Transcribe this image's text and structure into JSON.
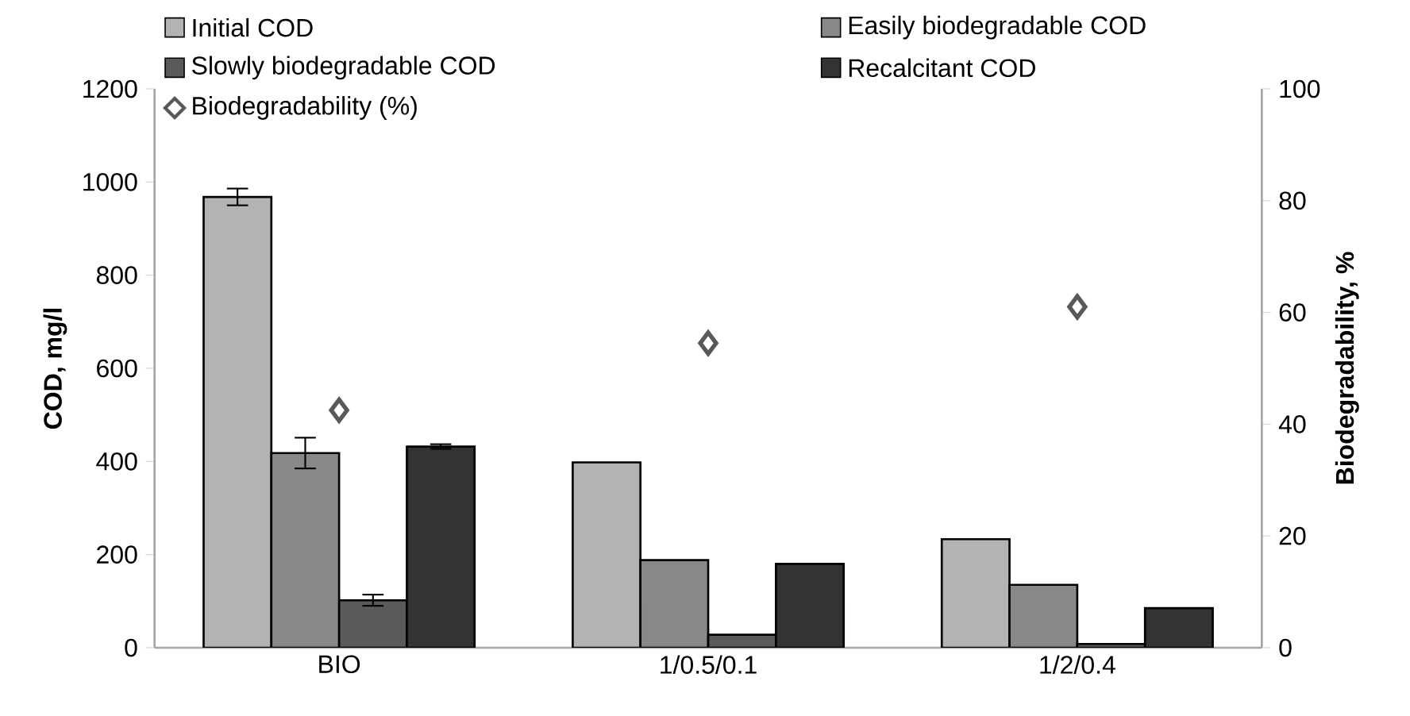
{
  "chart_data": {
    "type": "bar",
    "ylabel": "COD, mg/l",
    "y2label": "Biodegradability, %",
    "categories": [
      "BIO",
      "1/0.5/0.1",
      "1/2/0.4"
    ],
    "series": [
      {
        "name": "Initial COD",
        "color": "#b3b3b3",
        "values": [
          968,
          398,
          233
        ],
        "errors": [
          18,
          null,
          null
        ]
      },
      {
        "name": "Easily biodegradable COD",
        "color": "#888888",
        "values": [
          418,
          188,
          135
        ],
        "errors": [
          33,
          null,
          null
        ]
      },
      {
        "name": "Slowly biodegradable COD",
        "color": "#5a5a5a",
        "values": [
          102,
          28,
          8
        ],
        "errors": [
          12,
          null,
          null
        ]
      },
      {
        "name": "Recalcitant COD",
        "color": "#333333",
        "values": [
          432,
          180,
          85
        ],
        "errors": [
          5,
          null,
          null
        ]
      },
      {
        "name": "Biodegradability (%)",
        "type": "scatter",
        "axis": "y2",
        "marker": "diamond",
        "color": "#595959",
        "values": [
          42.5,
          54.5,
          61
        ]
      }
    ],
    "ylim": [
      0,
      1200
    ],
    "yticks": [
      0,
      200,
      400,
      600,
      800,
      1000,
      1200
    ],
    "y2lim": [
      0,
      100
    ],
    "y2ticks": [
      0,
      20,
      40,
      60,
      80,
      100
    ],
    "grid": false,
    "legend": "top"
  }
}
